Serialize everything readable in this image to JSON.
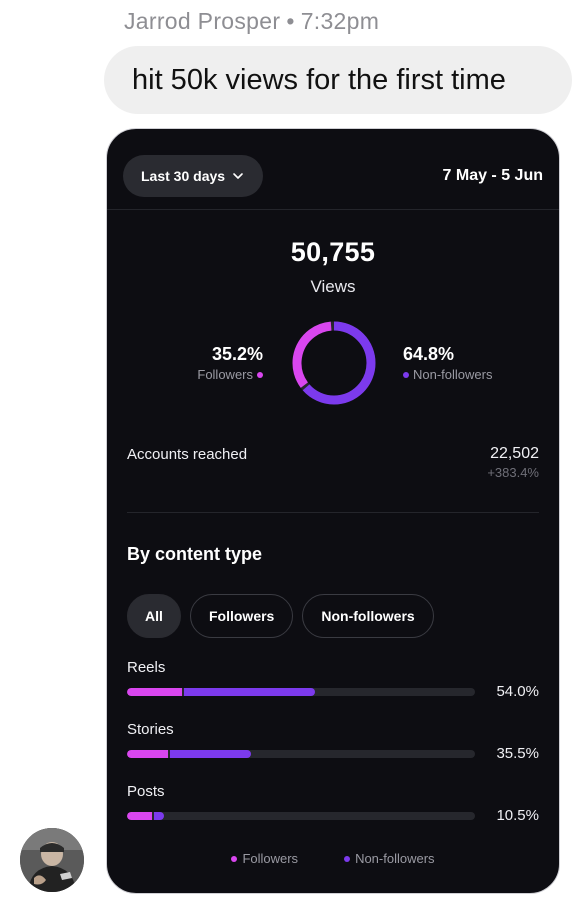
{
  "message": {
    "sender": "Jarrod Prosper",
    "separator": "•",
    "time": "7:32pm",
    "text": "hit 50k views for the first time"
  },
  "insights": {
    "range_label": "Last 30 days",
    "date_range": "7 May - 5 Jun",
    "views_count": "50,755",
    "views_label": "Views",
    "followers_pct": "35.2%",
    "followers_label": "Followers",
    "non_followers_pct": "64.8%",
    "non_followers_label": "Non-followers",
    "donut": {
      "followers_fraction": 0.352,
      "non_followers_fraction": 0.648
    },
    "accounts_reached_label": "Accounts reached",
    "accounts_reached_value": "22,502",
    "accounts_reached_change": "+383.4%",
    "section_title": "By content type",
    "filters": [
      "All",
      "Followers",
      "Non-followers"
    ],
    "content_types": [
      {
        "label": "Reels",
        "pct": "54.0%",
        "followers_fraction": 0.16,
        "non_followers_fraction": 0.38
      },
      {
        "label": "Stories",
        "pct": "35.5%",
        "followers_fraction": 0.12,
        "non_followers_fraction": 0.235
      },
      {
        "label": "Posts",
        "pct": "10.5%",
        "followers_fraction": 0.075,
        "non_followers_fraction": 0.03
      }
    ],
    "legend": {
      "followers": "Followers",
      "non_followers": "Non-followers"
    }
  },
  "colors": {
    "followers": "#d946ef",
    "non_followers": "#7c3aed",
    "card_bg": "#0d0d12",
    "bubble_bg": "#efefef"
  },
  "icons": {
    "range_dropdown": "chevron-down-icon",
    "avatar": "profile-photo"
  }
}
